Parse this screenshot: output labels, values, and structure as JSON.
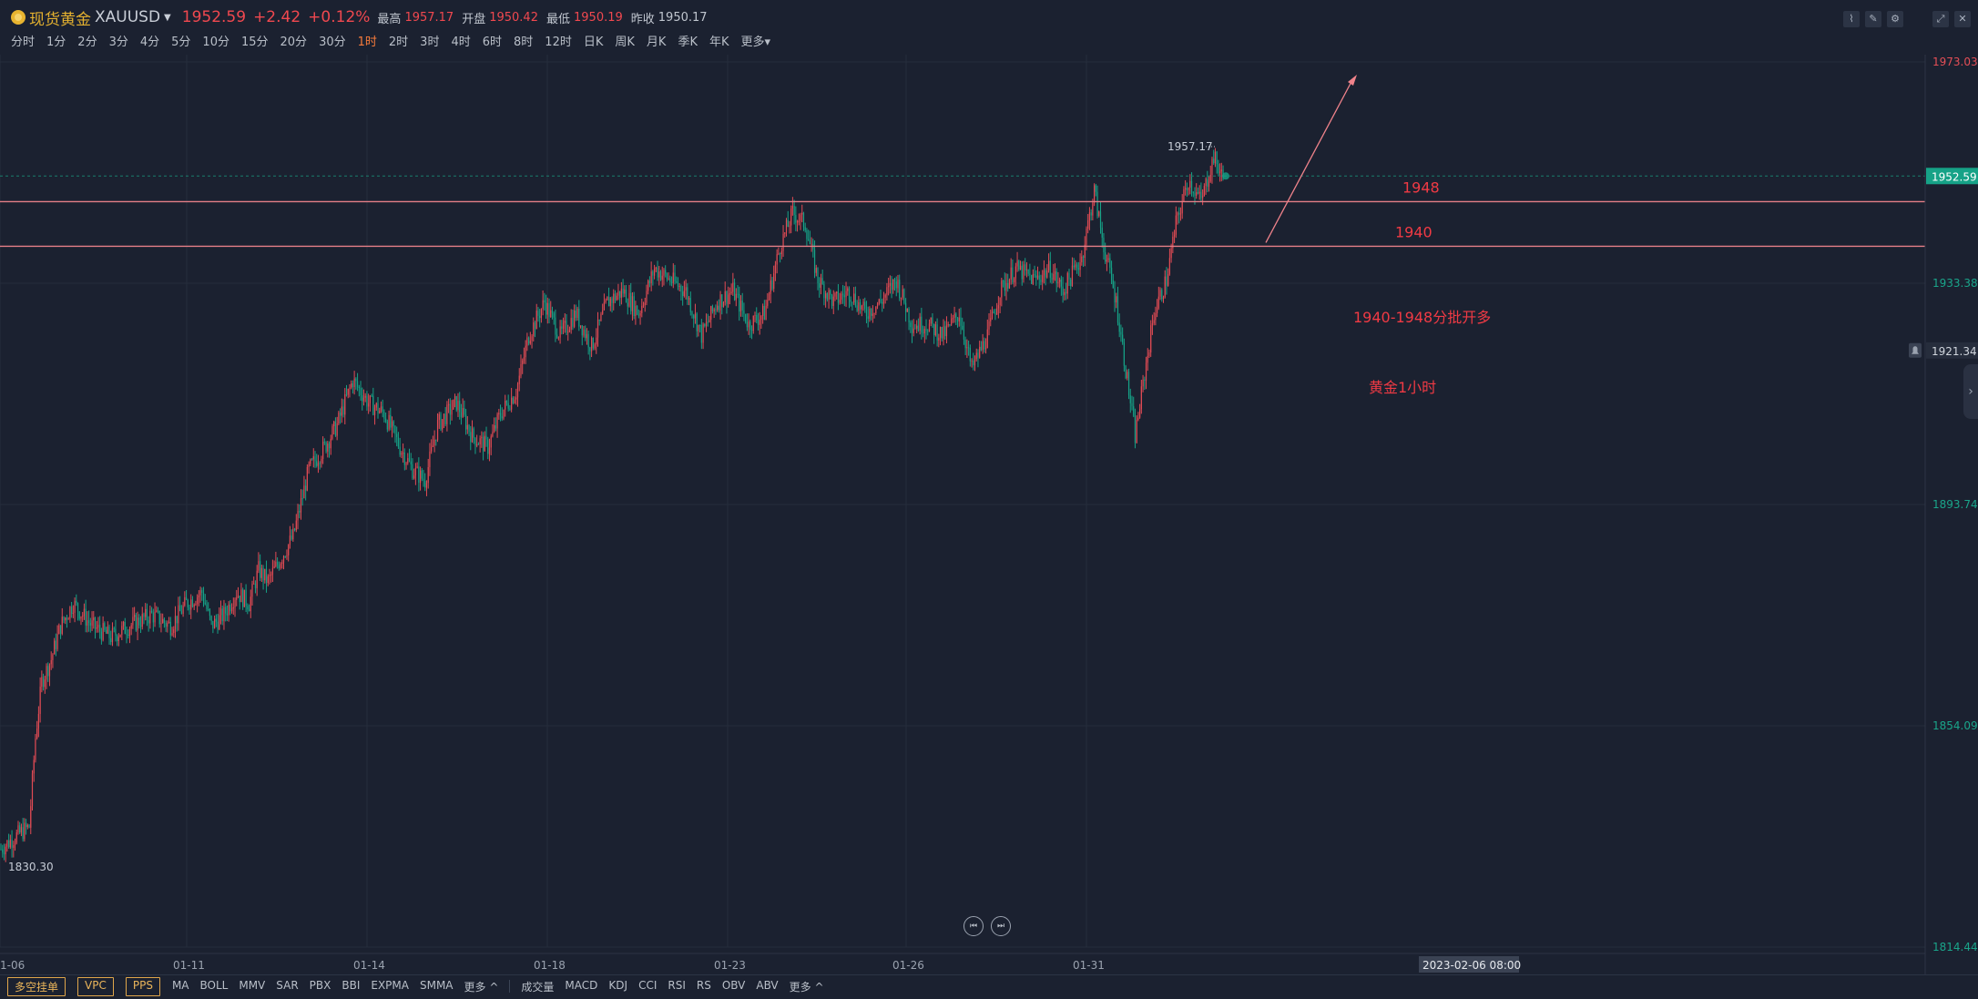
{
  "header": {
    "symbol_name": "现货黄金",
    "symbol_code": "XAUUSD",
    "price": "1952.59",
    "change": "+2.42",
    "change_pct": "+0.12%",
    "high_label": "最高",
    "high": "1957.17",
    "open_label": "开盘",
    "open": "1950.42",
    "low_label": "最低",
    "low": "1950.19",
    "prev_close_label": "昨收",
    "prev_close": "1950.17"
  },
  "periods": [
    "分时",
    "1分",
    "2分",
    "3分",
    "4分",
    "5分",
    "10分",
    "15分",
    "20分",
    "30分",
    "1时",
    "2时",
    "3时",
    "4时",
    "6时",
    "8时",
    "12时",
    "日K",
    "周K",
    "月K",
    "季K",
    "年K",
    "更多"
  ],
  "active_period": "1时",
  "colors": {
    "up": "#e24b54",
    "down": "#16a287",
    "background": "#1b2130",
    "annotation": "#f03a44",
    "price_tag": "#16a287"
  },
  "chart_data": {
    "type": "candlestick",
    "price_axis": [
      "1973.03",
      "1933.38",
      "1893.74",
      "1854.09",
      "1814.44"
    ],
    "price_axis_values": [
      1973.03,
      1933.38,
      1893.74,
      1854.09,
      1814.44
    ],
    "x_ticks": [
      "1-06",
      "01-11",
      "01-14",
      "01-18",
      "01-23",
      "01-26",
      "01-31"
    ],
    "current_price": "1952.59",
    "current_price_value": 1952.59,
    "alert_price": "1921.34",
    "alert_price_value": 1921.34,
    "period_high": "1957.17",
    "period_high_value": 1957.17,
    "period_low": "1830.30",
    "period_low_value": 1830.3,
    "crosshair_time": "2023-02-06 08:00",
    "horizontal_lines": [
      {
        "label": "1948",
        "value": 1948
      },
      {
        "label": "1940",
        "value": 1940
      }
    ],
    "annotations": [
      "1940-1948分批开多",
      "黄金1小时"
    ],
    "close_path": [
      [
        0,
        1832
      ],
      [
        8,
        1834
      ],
      [
        18,
        1836
      ],
      [
        22,
        1852
      ],
      [
        26,
        1862
      ],
      [
        32,
        1866
      ],
      [
        38,
        1872
      ],
      [
        46,
        1876
      ],
      [
        58,
        1872
      ],
      [
        70,
        1870
      ],
      [
        82,
        1872
      ],
      [
        96,
        1874
      ],
      [
        108,
        1872
      ],
      [
        118,
        1876
      ],
      [
        128,
        1878
      ],
      [
        134,
        1872
      ],
      [
        142,
        1874
      ],
      [
        150,
        1878
      ],
      [
        158,
        1876
      ],
      [
        164,
        1882
      ],
      [
        170,
        1880
      ],
      [
        178,
        1884
      ],
      [
        186,
        1888
      ],
      [
        196,
        1900
      ],
      [
        206,
        1904
      ],
      [
        214,
        1908
      ],
      [
        224,
        1916
      ],
      [
        234,
        1912
      ],
      [
        244,
        1910
      ],
      [
        254,
        1904
      ],
      [
        262,
        1900
      ],
      [
        270,
        1898
      ],
      [
        278,
        1908
      ],
      [
        290,
        1912
      ],
      [
        300,
        1906
      ],
      [
        310,
        1904
      ],
      [
        318,
        1910
      ],
      [
        328,
        1914
      ],
      [
        336,
        1924
      ],
      [
        346,
        1930
      ],
      [
        356,
        1924
      ],
      [
        366,
        1928
      ],
      [
        376,
        1922
      ],
      [
        386,
        1930
      ],
      [
        396,
        1932
      ],
      [
        406,
        1928
      ],
      [
        416,
        1936
      ],
      [
        426,
        1934
      ],
      [
        436,
        1932
      ],
      [
        446,
        1924
      ],
      [
        456,
        1930
      ],
      [
        466,
        1932
      ],
      [
        476,
        1926
      ],
      [
        486,
        1928
      ],
      [
        496,
        1940
      ],
      [
        504,
        1946
      ],
      [
        512,
        1944
      ],
      [
        520,
        1934
      ],
      [
        530,
        1930
      ],
      [
        540,
        1932
      ],
      [
        550,
        1928
      ],
      [
        560,
        1930
      ],
      [
        570,
        1934
      ],
      [
        580,
        1926
      ],
      [
        590,
        1926
      ],
      [
        600,
        1924
      ],
      [
        610,
        1928
      ],
      [
        618,
        1918
      ],
      [
        628,
        1924
      ],
      [
        636,
        1932
      ],
      [
        646,
        1936
      ],
      [
        658,
        1934
      ],
      [
        668,
        1936
      ],
      [
        676,
        1932
      ],
      [
        688,
        1938
      ],
      [
        696,
        1950
      ],
      [
        702,
        1940
      ],
      [
        710,
        1930
      ],
      [
        722,
        1906
      ],
      [
        734,
        1928
      ],
      [
        742,
        1934
      ],
      [
        748,
        1944
      ],
      [
        756,
        1952
      ],
      [
        764,
        1948
      ],
      [
        772,
        1956
      ],
      [
        778,
        1952
      ]
    ]
  },
  "bottom_bar": {
    "buttons": [
      "多空挂单",
      "VPC",
      "PPS"
    ],
    "main_indicators": [
      "MA",
      "BOLL",
      "MMV",
      "SAR",
      "PBX",
      "BBI",
      "EXPMA",
      "SMMA",
      "更多 ^"
    ],
    "sub_indicators": [
      "成交量",
      "MACD",
      "KDJ",
      "CCI",
      "RSI",
      "RS",
      "OBV",
      "ABV",
      "更多 ^"
    ]
  }
}
